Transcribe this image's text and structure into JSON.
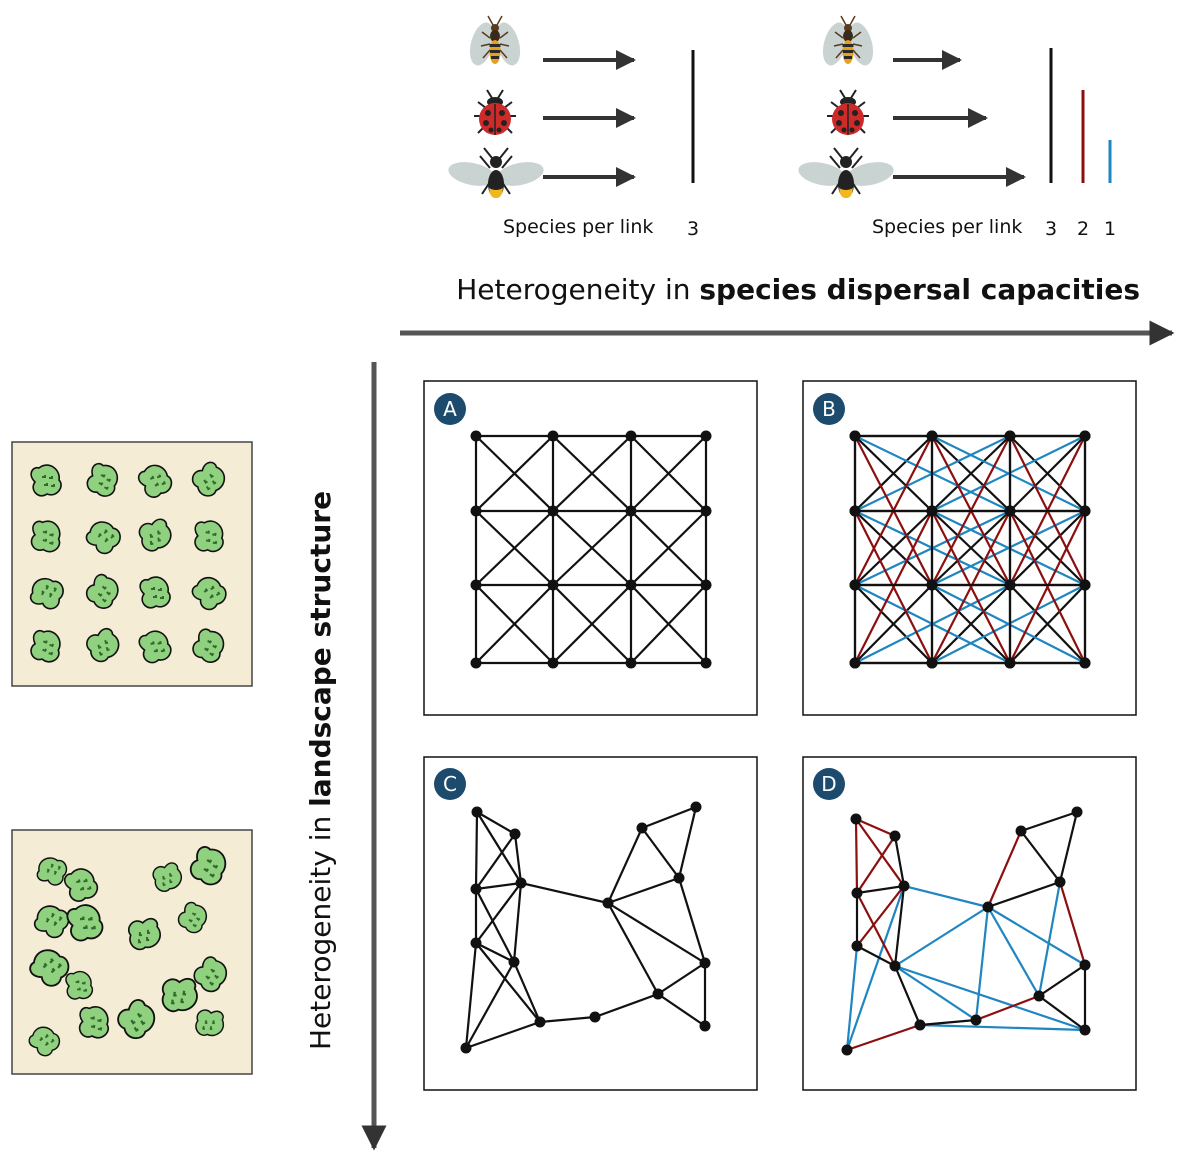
{
  "top_axis": {
    "label_prefix": "Heterogeneity in ",
    "label_bold": "species dispersal capacities"
  },
  "left_axis": {
    "label_prefix": "Heterogeneity in ",
    "label_bold": "landscape structure"
  },
  "legend_homogeneous": {
    "species_per_link_label": "Species per link",
    "value": "3",
    "species": [
      "wasp-icon",
      "ladybug-icon",
      "bee-icon"
    ]
  },
  "legend_heterogeneous": {
    "species_per_link_label": "Species per link",
    "values": [
      "3",
      "2",
      "1"
    ],
    "species": [
      "wasp-icon",
      "ladybug-icon",
      "bee-icon"
    ]
  },
  "colors": {
    "link_3_species": "#111111",
    "link_2_species": "#8b0f0f",
    "link_1_species": "#1f86c0",
    "panel_badge": "#1d4b6e",
    "landscape_bg": "#f5ecd6",
    "patch_fill": "#8fd17f"
  },
  "panels": [
    {
      "letter": "A",
      "landscape": "regular",
      "dispersal": "homogeneous"
    },
    {
      "letter": "B",
      "landscape": "regular",
      "dispersal": "heterogeneous"
    },
    {
      "letter": "C",
      "landscape": "random",
      "dispersal": "homogeneous"
    },
    {
      "letter": "D",
      "landscape": "random",
      "dispersal": "heterogeneous"
    }
  ]
}
